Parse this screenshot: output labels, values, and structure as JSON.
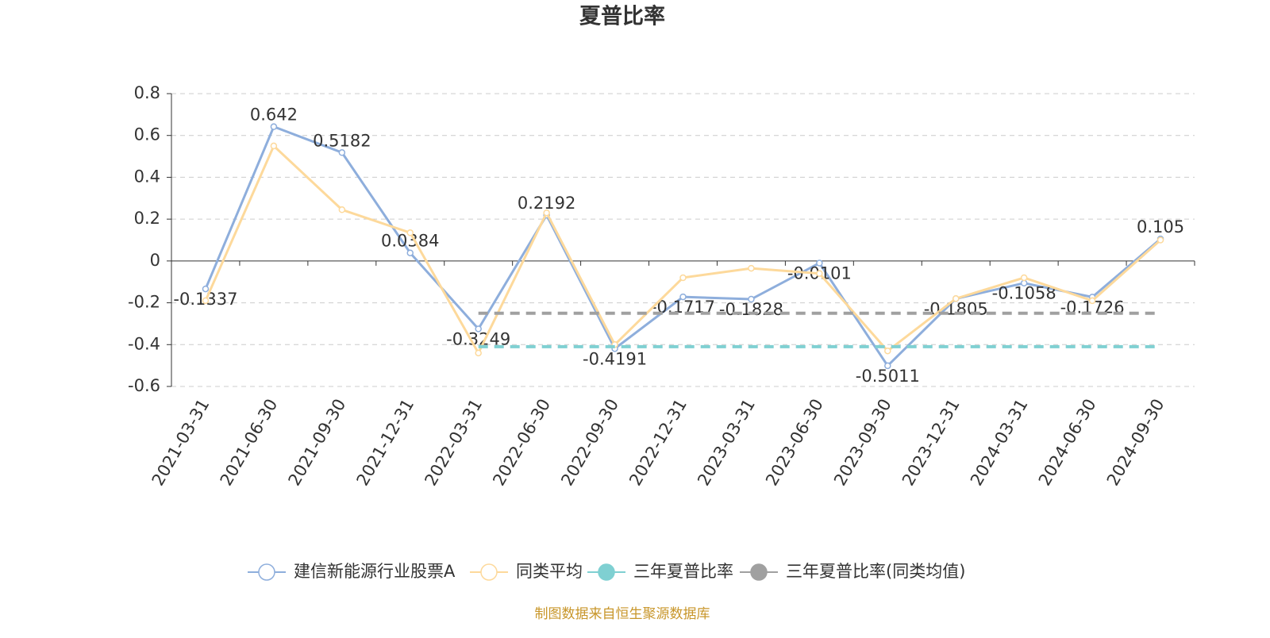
{
  "chart_data": {
    "type": "line",
    "title": "夏普比率",
    "categories": [
      "2021-03-31",
      "2021-06-30",
      "2021-09-30",
      "2021-12-31",
      "2022-03-31",
      "2022-06-30",
      "2022-09-30",
      "2022-12-31",
      "2023-03-31",
      "2023-06-30",
      "2023-09-30",
      "2023-12-31",
      "2024-03-31",
      "2024-06-30",
      "2024-09-30"
    ],
    "series": [
      {
        "name": "建信新能源行业股票A",
        "color": "#8eaedc",
        "labels": true,
        "values": [
          -0.1337,
          0.642,
          0.5182,
          0.0384,
          -0.3249,
          0.2192,
          -0.4191,
          -0.1717,
          -0.1828,
          -0.0101,
          -0.5011,
          -0.1805,
          -0.1058,
          -0.1726,
          0.105
        ]
      },
      {
        "name": "同类平均",
        "color": "#fdd99b",
        "values": [
          -0.19,
          0.55,
          0.245,
          0.135,
          -0.44,
          0.23,
          -0.4,
          -0.08,
          -0.035,
          -0.06,
          -0.43,
          -0.18,
          -0.08,
          -0.19,
          0.1
        ]
      },
      {
        "name": "三年夏普比率",
        "color": "#7fd0d2",
        "style": "dashed",
        "values": [
          null,
          null,
          null,
          null,
          -0.41,
          -0.41,
          -0.41,
          -0.41,
          -0.41,
          -0.41,
          -0.41,
          -0.41,
          -0.41,
          -0.41,
          -0.41
        ]
      },
      {
        "name": "三年夏普比率(同类均值)",
        "color": "#a0a0a0",
        "style": "dashed",
        "values": [
          null,
          null,
          null,
          null,
          -0.25,
          -0.25,
          -0.25,
          -0.25,
          -0.25,
          -0.25,
          -0.25,
          -0.25,
          -0.25,
          -0.25,
          -0.25
        ]
      }
    ],
    "ylim": [
      -0.6,
      0.8
    ],
    "yticks": [
      -0.6,
      -0.4,
      -0.2,
      0,
      0.2,
      0.4,
      0.6,
      0.8
    ],
    "grid": true,
    "legend": "bottom",
    "source": "制图数据来自恒生聚源数据库"
  }
}
